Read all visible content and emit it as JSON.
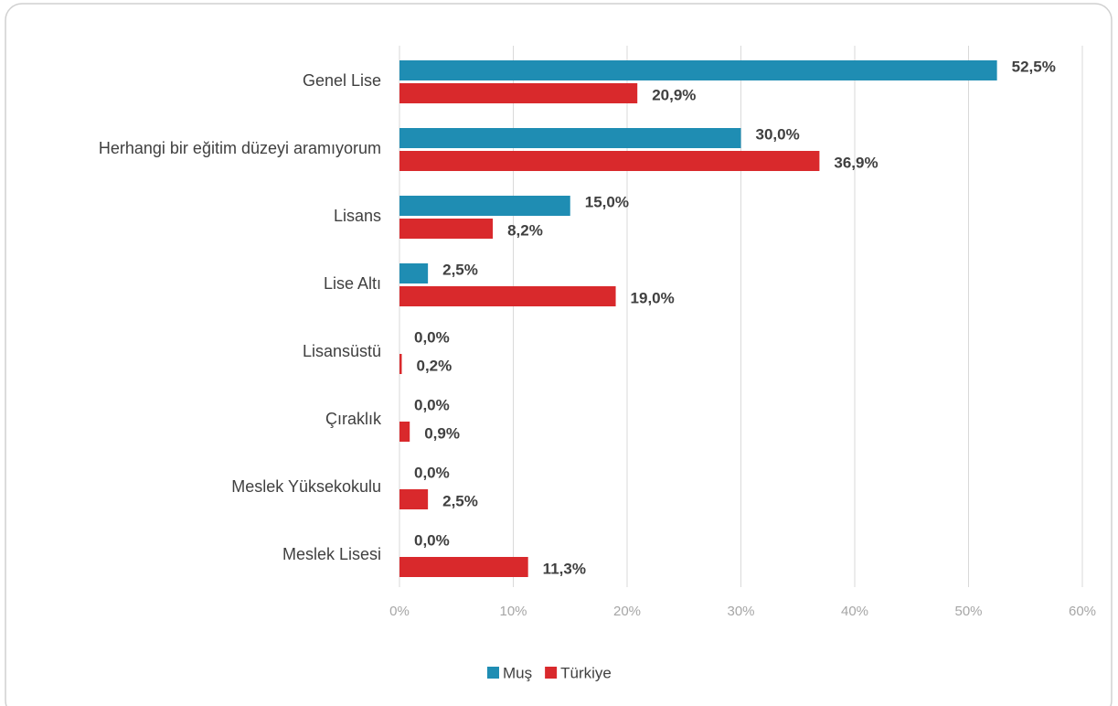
{
  "chart_data": {
    "type": "hbar",
    "categories": [
      "Genel Lise",
      "Herhangi bir eğitim düzeyi aramıyorum",
      "Lisans",
      "Lise Altı",
      "Lisansüstü",
      "Çıraklık",
      "Meslek Yüksekokulu",
      "Meslek Lisesi"
    ],
    "series": [
      {
        "name": "Muş",
        "color": "#1f8db3",
        "values": [
          52.5,
          30.0,
          15.0,
          2.5,
          0.0,
          0.0,
          0.0,
          0.0
        ],
        "value_labels": [
          "52,5%",
          "30,0%",
          "15,0%",
          "2,5%",
          "0,0%",
          "0,0%",
          "0,0%",
          "0,0%"
        ]
      },
      {
        "name": "Türkiye",
        "color": "#d9292c",
        "values": [
          20.9,
          36.9,
          8.2,
          19.0,
          0.2,
          0.9,
          2.5,
          11.3
        ],
        "value_labels": [
          "20,9%",
          "36,9%",
          "8,2%",
          "19,0%",
          "0,2%",
          "0,9%",
          "2,5%",
          "11,3%"
        ]
      }
    ],
    "xlim": [
      0,
      60
    ],
    "xticks": [
      {
        "value": 0,
        "label": "0%"
      },
      {
        "value": 10,
        "label": "10%"
      },
      {
        "value": 20,
        "label": "20%"
      },
      {
        "value": 30,
        "label": "30%"
      },
      {
        "value": 40,
        "label": "40%"
      },
      {
        "value": 50,
        "label": "50%"
      },
      {
        "value": 60,
        "label": "60%"
      }
    ],
    "grid": true,
    "legend": "bottom"
  }
}
